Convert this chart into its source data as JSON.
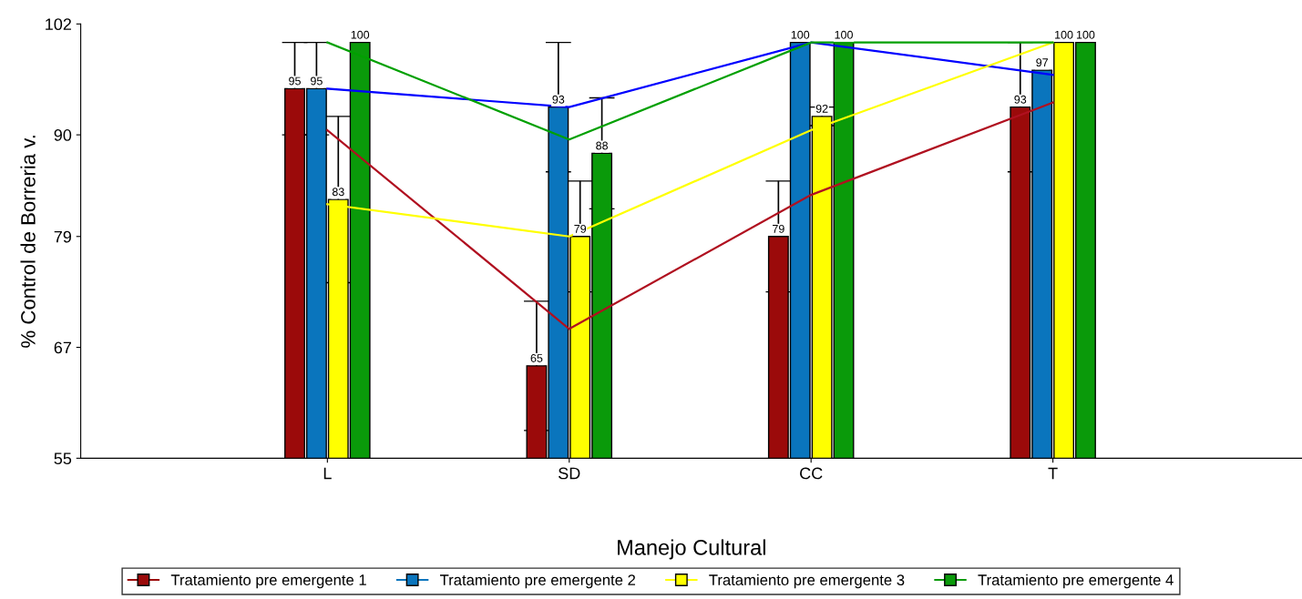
{
  "chart_data": {
    "type": "bar",
    "xlabel": "Manejo Cultural",
    "ylabel": "% Control de Borreria v.",
    "categories": [
      "L",
      "SD",
      "CC",
      "T"
    ],
    "ylim": [
      55,
      102
    ],
    "yticks": [
      55,
      67,
      79,
      90,
      102
    ],
    "grid": false,
    "legend": "bottom",
    "series": [
      {
        "name": "Tratamiento pre emergente 1",
        "color": "#9b0a0a",
        "values": [
          95,
          65,
          79,
          93
        ],
        "value_labels": [
          "95",
          "65",
          "79",
          "93"
        ],
        "errors": [
          5,
          7,
          6,
          7
        ]
      },
      {
        "name": "Tratamiento pre emergente 2",
        "color": "#0a75bd",
        "values": [
          95,
          93,
          100,
          97
        ],
        "value_labels": [
          "95",
          "93",
          "100",
          "97"
        ],
        "errors": [
          5,
          7,
          null,
          null
        ]
      },
      {
        "name": "Tratamiento pre emergente 3",
        "color": "#ffff00",
        "values": [
          83,
          79,
          92,
          100
        ],
        "value_labels": [
          "83",
          "79",
          "92",
          "100"
        ],
        "errors": [
          9,
          6,
          1,
          null
        ]
      },
      {
        "name": "Tratamiento pre emergente 4",
        "color": "#0a9a0a",
        "values": [
          100,
          88,
          100,
          100
        ],
        "value_labels": [
          "100",
          "88",
          "100",
          "100"
        ],
        "errors": [
          null,
          6,
          null,
          null
        ]
      },
      {
        "type": "line",
        "color": "#b01020",
        "values": [
          90.5,
          69,
          83.5,
          93.5
        ]
      },
      {
        "type": "line",
        "color": "#0000ff",
        "values": [
          95,
          93,
          100,
          96.5
        ]
      },
      {
        "type": "line",
        "color": "#ffff00",
        "values": [
          82.5,
          79,
          90.5,
          100
        ]
      },
      {
        "type": "line",
        "color": "#00a000",
        "values": [
          100,
          89.5,
          100,
          100
        ]
      }
    ]
  }
}
